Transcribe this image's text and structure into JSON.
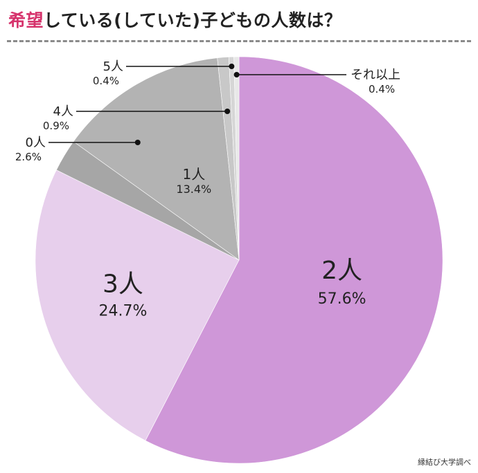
{
  "title": {
    "accent": "希望",
    "rest": "している(していた)子どもの人数は？"
  },
  "source": "縁結び大学調べ",
  "chart_data": {
    "type": "pie",
    "title": "希望している(していた)子どもの人数は？",
    "start": "12 o'clock",
    "direction": "clockwise",
    "order": [
      "2人",
      "3人",
      "0人",
      "1人",
      "4人",
      "5人",
      "それ以上"
    ],
    "slices": [
      {
        "label": "2人",
        "percent_label": "57.6%",
        "value": 57.6,
        "color": "#cf97d8"
      },
      {
        "label": "3人",
        "percent_label": "24.7%",
        "value": 24.7,
        "color": "#e7cfec"
      },
      {
        "label": "0人",
        "percent_label": "2.6%",
        "value": 2.6,
        "color": "#a6a6a6"
      },
      {
        "label": "1人",
        "percent_label": "13.4%",
        "value": 13.4,
        "color": "#b3b3b3"
      },
      {
        "label": "4人",
        "percent_label": "0.9%",
        "value": 0.9,
        "color": "#c8c8c8"
      },
      {
        "label": "5人",
        "percent_label": "0.4%",
        "value": 0.4,
        "color": "#d6d6d6"
      },
      {
        "label": "それ以上",
        "percent_label": "0.4%",
        "value": 0.4,
        "color": "#e8e8e8"
      }
    ]
  }
}
